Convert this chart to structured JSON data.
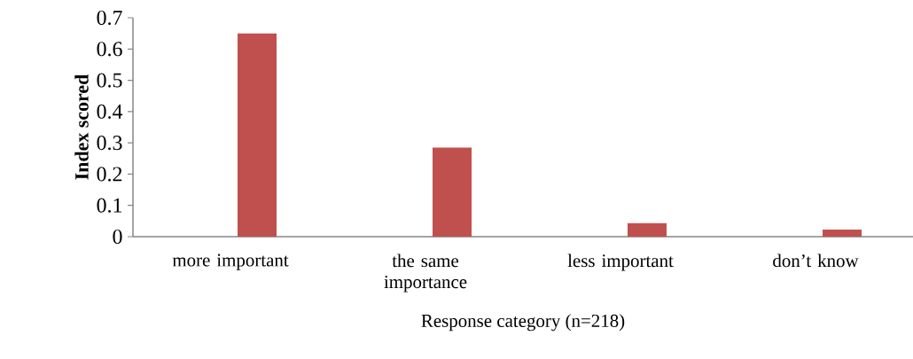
{
  "chart_data": {
    "type": "bar",
    "categories": [
      "more important",
      "the same importance",
      "less important",
      "don’t know"
    ],
    "values": [
      0.65,
      0.285,
      0.043,
      0.023
    ],
    "color": "#c0504d",
    "ylim": [
      0,
      0.7
    ],
    "yticks": [
      0,
      0.1,
      0.2,
      0.3,
      0.4,
      0.5,
      0.6,
      0.7
    ],
    "xlabel": "Response category (n=218)",
    "ylabel": "Index scored",
    "grid": false
  }
}
